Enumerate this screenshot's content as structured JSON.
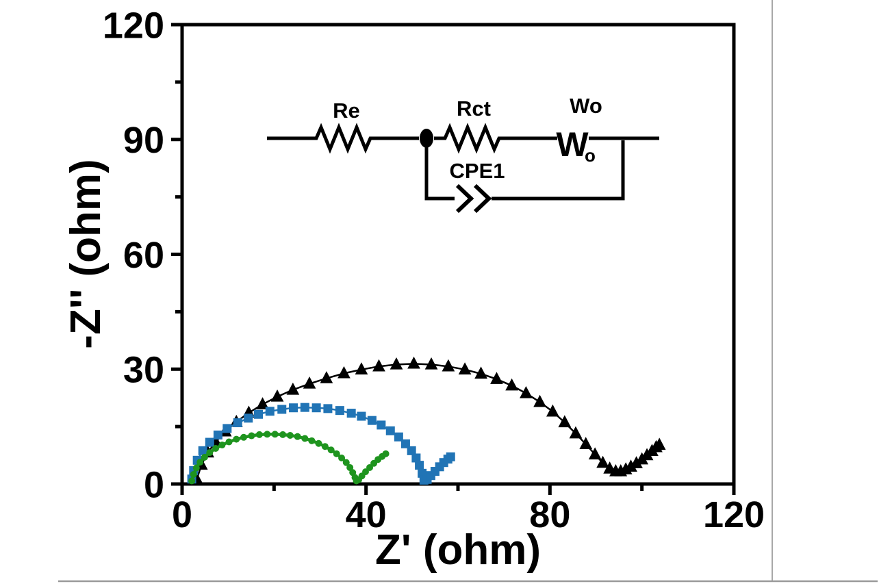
{
  "figure": {
    "background": "#ffffff",
    "panel_edge_color": "#a8a8a8"
  },
  "chart_data": {
    "type": "scatter",
    "title": "",
    "xlabel": "Z' (ohm)",
    "ylabel": "-Z'' (ohm)",
    "xlim": [
      0,
      120
    ],
    "ylim": [
      0,
      120
    ],
    "x_major_ticks": [
      0,
      40,
      80,
      120
    ],
    "x_minor_ticks": [
      20,
      60,
      100
    ],
    "y_major_ticks": [
      0,
      30,
      60,
      90,
      120
    ],
    "y_minor_ticks": [
      15,
      45,
      75,
      105
    ],
    "grid": false,
    "legend": "none",
    "axis_color": "#000000",
    "series": [
      {
        "name": "black-triangle-series",
        "marker": "triangle-up",
        "color": "#000000",
        "marker_size": 17,
        "line_width": 2.5,
        "points": [
          [
            3.2,
            1.2
          ],
          [
            4.2,
            5.0
          ],
          [
            5.6,
            8.2
          ],
          [
            7.3,
            11.0
          ],
          [
            9.4,
            13.7
          ],
          [
            11.8,
            16.2
          ],
          [
            14.5,
            18.6
          ],
          [
            17.5,
            20.8
          ],
          [
            20.7,
            22.8
          ],
          [
            24.1,
            24.6
          ],
          [
            27.7,
            26.2
          ],
          [
            31.4,
            27.6
          ],
          [
            35.2,
            28.9
          ],
          [
            39.0,
            29.9
          ],
          [
            42.8,
            30.7
          ],
          [
            46.6,
            31.2
          ],
          [
            50.4,
            31.4
          ],
          [
            54.2,
            31.2
          ],
          [
            57.9,
            30.7
          ],
          [
            61.5,
            29.9
          ],
          [
            65.0,
            28.8
          ],
          [
            68.4,
            27.4
          ],
          [
            71.7,
            25.7
          ],
          [
            74.8,
            23.7
          ],
          [
            77.8,
            21.4
          ],
          [
            80.6,
            18.9
          ],
          [
            83.2,
            16.1
          ],
          [
            85.6,
            13.2
          ],
          [
            87.8,
            10.4
          ],
          [
            89.8,
            7.7
          ],
          [
            91.5,
            5.5
          ],
          [
            93.0,
            4.0
          ],
          [
            94.3,
            3.3
          ],
          [
            95.4,
            3.3
          ],
          [
            96.5,
            3.8
          ],
          [
            97.6,
            4.5
          ],
          [
            98.8,
            5.4
          ],
          [
            100.0,
            6.4
          ],
          [
            101.1,
            7.5
          ],
          [
            102.2,
            8.6
          ],
          [
            103.1,
            9.6
          ],
          [
            103.8,
            10.2
          ]
        ]
      },
      {
        "name": "blue-square-series",
        "marker": "square",
        "color": "#2174b5",
        "marker_size": 13,
        "line_width": 2.5,
        "points": [
          [
            2.1,
            1.3
          ],
          [
            2.5,
            3.5
          ],
          [
            3.3,
            6.2
          ],
          [
            4.5,
            8.7
          ],
          [
            6.0,
            10.9
          ],
          [
            7.8,
            12.8
          ],
          [
            9.8,
            14.5
          ],
          [
            12.1,
            16.0
          ],
          [
            14.4,
            17.2
          ],
          [
            16.6,
            18.2
          ],
          [
            19.1,
            19.0
          ],
          [
            21.7,
            19.5
          ],
          [
            24.2,
            19.9
          ],
          [
            26.7,
            20.0
          ],
          [
            29.2,
            19.9
          ],
          [
            31.7,
            19.7
          ],
          [
            34.3,
            19.2
          ],
          [
            36.8,
            18.5
          ],
          [
            39.0,
            17.7
          ],
          [
            41.3,
            16.6
          ],
          [
            43.3,
            15.4
          ],
          [
            45.3,
            13.9
          ],
          [
            47.1,
            12.3
          ],
          [
            48.6,
            10.5
          ],
          [
            49.9,
            8.7
          ],
          [
            50.9,
            6.8
          ],
          [
            51.6,
            4.9
          ],
          [
            52.2,
            2.8
          ],
          [
            52.6,
            1.0
          ],
          [
            53.3,
            1.2
          ],
          [
            54.1,
            2.2
          ],
          [
            55.0,
            3.3
          ],
          [
            56.0,
            4.5
          ],
          [
            56.9,
            5.6
          ],
          [
            57.8,
            6.5
          ],
          [
            58.4,
            7.1
          ]
        ]
      },
      {
        "name": "green-circle-series",
        "marker": "circle",
        "color": "#1e941e",
        "marker_size": 10,
        "line_width": 4.5,
        "points": [
          [
            2.1,
            0.8
          ],
          [
            2.5,
            2.5
          ],
          [
            3.1,
            4.2
          ],
          [
            3.9,
            5.7
          ],
          [
            4.9,
            7.0
          ],
          [
            6.0,
            8.2
          ],
          [
            7.3,
            9.3
          ],
          [
            8.7,
            10.2
          ],
          [
            10.2,
            11.0
          ],
          [
            11.8,
            11.7
          ],
          [
            13.4,
            12.2
          ],
          [
            15.1,
            12.6
          ],
          [
            16.8,
            12.9
          ],
          [
            18.5,
            13.0
          ],
          [
            20.2,
            13.0
          ],
          [
            21.9,
            12.9
          ],
          [
            23.5,
            12.7
          ],
          [
            25.1,
            12.4
          ],
          [
            26.7,
            11.9
          ],
          [
            28.2,
            11.3
          ],
          [
            29.7,
            10.6
          ],
          [
            31.1,
            9.8
          ],
          [
            32.4,
            8.9
          ],
          [
            33.6,
            7.9
          ],
          [
            34.7,
            6.8
          ],
          [
            35.7,
            5.6
          ],
          [
            36.5,
            4.3
          ],
          [
            37.1,
            3.0
          ],
          [
            37.6,
            1.7
          ],
          [
            37.9,
            0.8
          ],
          [
            38.4,
            1.1
          ],
          [
            39.1,
            2.1
          ],
          [
            39.9,
            3.2
          ],
          [
            40.8,
            4.3
          ],
          [
            41.7,
            5.4
          ],
          [
            42.6,
            6.4
          ],
          [
            43.5,
            7.2
          ],
          [
            44.3,
            7.9
          ]
        ]
      }
    ]
  },
  "inset_circuit": {
    "re_label": "Re",
    "rct_label": "Rct",
    "wo_label": "Wo",
    "cpe_label": "CPE1",
    "warburg_symbol": "W",
    "warburg_symbol_sub": "o"
  }
}
